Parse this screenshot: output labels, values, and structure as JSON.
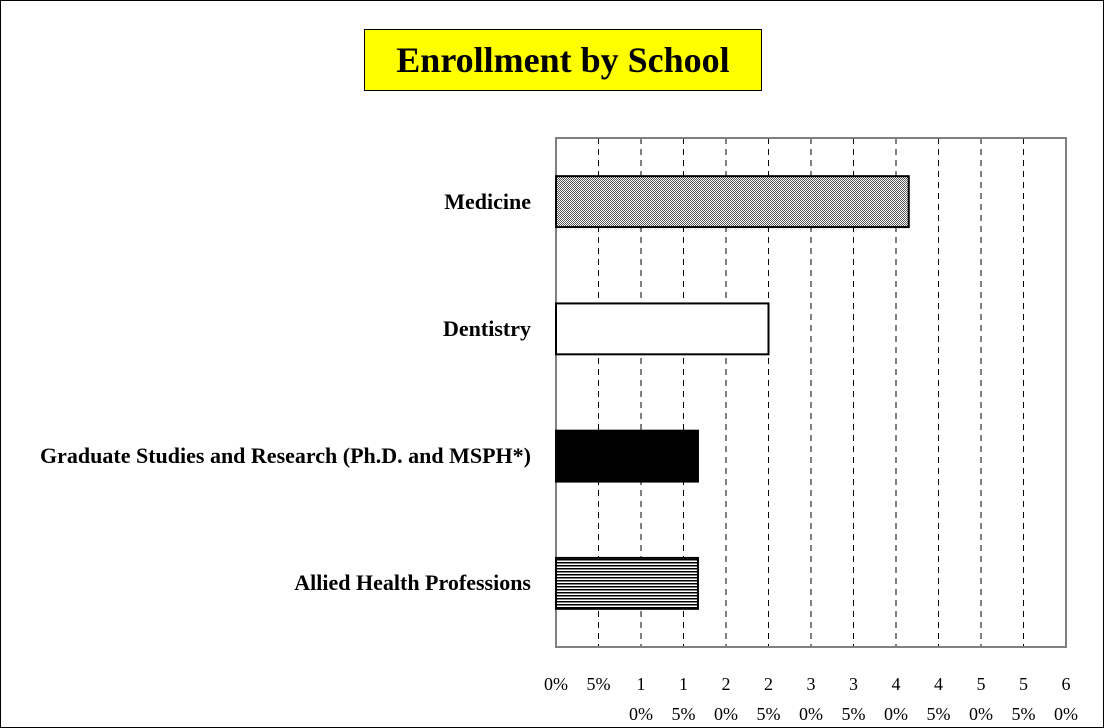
{
  "chart_data": {
    "type": "hbar",
    "title": "Enrollment by School",
    "categories": [
      "Medicine",
      "Dentistry",
      "Graduate Studies and Research (Ph.D. and MSPH*)",
      "Allied Health Professions"
    ],
    "values": [
      41.5,
      25,
      16.7,
      16.7
    ],
    "colors": [
      "#b0b0b0",
      "#ffffff",
      "#000000",
      "#ffffff"
    ],
    "patterns": [
      "dots",
      "none",
      "none",
      "horizontal-lines"
    ],
    "xlim": [
      0,
      60
    ],
    "xticks": [
      {
        "value": 0,
        "label": "0%"
      },
      {
        "value": 5,
        "label": "5%"
      },
      {
        "value": 10,
        "label": "10%"
      },
      {
        "value": 15,
        "label": "15%"
      },
      {
        "value": 20,
        "label": "20%"
      },
      {
        "value": 25,
        "label": "25%"
      },
      {
        "value": 30,
        "label": "30%"
      },
      {
        "value": 35,
        "label": "35%"
      },
      {
        "value": 40,
        "label": "40%"
      },
      {
        "value": 45,
        "label": "45%"
      },
      {
        "value": 50,
        "label": "50%"
      },
      {
        "value": 55,
        "label": "55%"
      },
      {
        "value": 60,
        "label": "60%"
      }
    ],
    "grid": true
  }
}
